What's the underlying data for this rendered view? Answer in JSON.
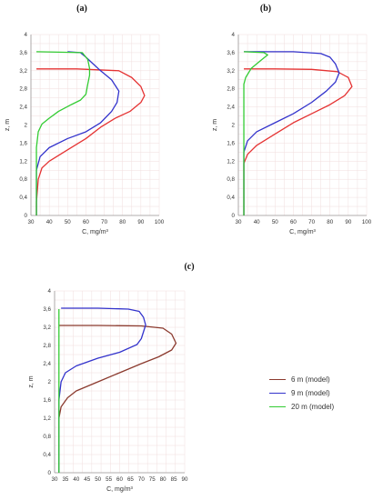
{
  "panels": [
    {
      "label": "(a)"
    },
    {
      "label": "(b)"
    },
    {
      "label": "(c)"
    }
  ],
  "legend": {
    "items": [
      {
        "label": "6 m (model)",
        "color": "#8B3A2E"
      },
      {
        "label": "9 m (model)",
        "color": "#3333CC"
      },
      {
        "label": "20 m (model)",
        "color": "#33CC33"
      }
    ]
  },
  "chart_data": [
    {
      "type": "line",
      "panel": "(a)",
      "xlabel": "C, mg/m³",
      "ylabel": "z, m",
      "xlim": [
        30,
        100
      ],
      "ylim": [
        0,
        4
      ],
      "xticks": [
        30,
        40,
        50,
        60,
        70,
        80,
        90,
        100
      ],
      "yticks": [
        0,
        0.4,
        0.8,
        1.2,
        1.6,
        2,
        2.4,
        2.8,
        3.2,
        3.6,
        4
      ],
      "ytick_labels": [
        "0",
        "0,4",
        "0,8",
        "1,2",
        "1,6",
        "2",
        "2,4",
        "2,8",
        "3,2",
        "3,6",
        "4"
      ],
      "grid": true,
      "series": [
        {
          "color": "#E53333",
          "points": [
            [
              33,
              0
            ],
            [
              33,
              0.3
            ],
            [
              34,
              0.8
            ],
            [
              36,
              1.05
            ],
            [
              40,
              1.2
            ],
            [
              50,
              1.45
            ],
            [
              60,
              1.7
            ],
            [
              68,
              1.95
            ],
            [
              76,
              2.15
            ],
            [
              84,
              2.3
            ],
            [
              90,
              2.5
            ],
            [
              92,
              2.65
            ],
            [
              90,
              2.85
            ],
            [
              85,
              3.05
            ],
            [
              78,
              3.2
            ],
            [
              55,
              3.24
            ],
            [
              33,
              3.24
            ]
          ]
        },
        {
          "color": "#3333CC",
          "points": [
            [
              33,
              0
            ],
            [
              33,
              0.5
            ],
            [
              33,
              1.0
            ],
            [
              35,
              1.3
            ],
            [
              40,
              1.5
            ],
            [
              50,
              1.7
            ],
            [
              60,
              1.85
            ],
            [
              68,
              2.05
            ],
            [
              74,
              2.3
            ],
            [
              77,
              2.5
            ],
            [
              78,
              2.75
            ],
            [
              74,
              3.0
            ],
            [
              68,
              3.2
            ],
            [
              64,
              3.35
            ],
            [
              60,
              3.5
            ],
            [
              57,
              3.6
            ],
            [
              50,
              3.62
            ]
          ]
        },
        {
          "color": "#33CC33",
          "points": [
            [
              33,
              0
            ],
            [
              33,
              0.5
            ],
            [
              33,
              1.0
            ],
            [
              33,
              1.5
            ],
            [
              34,
              1.85
            ],
            [
              36,
              2.02
            ],
            [
              40,
              2.15
            ],
            [
              45,
              2.3
            ],
            [
              52,
              2.45
            ],
            [
              57,
              2.55
            ],
            [
              60,
              2.68
            ],
            [
              61,
              2.9
            ],
            [
              62,
              3.1
            ],
            [
              62,
              3.25
            ],
            [
              61,
              3.45
            ],
            [
              58,
              3.6
            ],
            [
              33,
              3.62
            ]
          ]
        }
      ]
    },
    {
      "type": "line",
      "panel": "(b)",
      "xlabel": "C, mg/m³",
      "ylabel": "z, m",
      "xlim": [
        30,
        100
      ],
      "ylim": [
        0,
        4
      ],
      "xticks": [
        30,
        40,
        50,
        60,
        70,
        80,
        90,
        100
      ],
      "yticks": [
        0,
        0.4,
        0.8,
        1.2,
        1.6,
        2,
        2.4,
        2.8,
        3.2,
        3.6,
        4
      ],
      "ytick_labels": [
        "0",
        "0,4",
        "0,8",
        "1,2",
        "1,6",
        "2",
        "2,4",
        "2,8",
        "3,2",
        "3,6",
        "4"
      ],
      "grid": true,
      "series": [
        {
          "color": "#E53333",
          "points": [
            [
              33,
              0
            ],
            [
              33,
              0.6
            ],
            [
              33,
              1.15
            ],
            [
              35,
              1.35
            ],
            [
              40,
              1.55
            ],
            [
              50,
              1.8
            ],
            [
              60,
              2.05
            ],
            [
              70,
              2.25
            ],
            [
              80,
              2.45
            ],
            [
              88,
              2.65
            ],
            [
              92,
              2.85
            ],
            [
              90,
              3.05
            ],
            [
              84,
              3.18
            ],
            [
              70,
              3.23
            ],
            [
              50,
              3.24
            ],
            [
              33,
              3.24
            ]
          ]
        },
        {
          "color": "#3333CC",
          "points": [
            [
              33,
              0
            ],
            [
              33,
              0.8
            ],
            [
              33,
              1.4
            ],
            [
              35,
              1.65
            ],
            [
              40,
              1.85
            ],
            [
              50,
              2.05
            ],
            [
              60,
              2.25
            ],
            [
              70,
              2.5
            ],
            [
              78,
              2.75
            ],
            [
              83,
              2.95
            ],
            [
              85,
              3.15
            ],
            [
              83,
              3.35
            ],
            [
              80,
              3.5
            ],
            [
              75,
              3.58
            ],
            [
              60,
              3.62
            ],
            [
              33,
              3.62
            ]
          ]
        },
        {
          "color": "#33CC33",
          "points": [
            [
              33,
              0
            ],
            [
              33,
              1.0
            ],
            [
              33,
              2.0
            ],
            [
              33,
              2.6
            ],
            [
              33,
              2.9
            ],
            [
              34,
              3.05
            ],
            [
              37,
              3.25
            ],
            [
              42,
              3.42
            ],
            [
              46,
              3.55
            ],
            [
              44,
              3.6
            ],
            [
              33,
              3.62
            ]
          ]
        }
      ]
    },
    {
      "type": "line",
      "panel": "(c)",
      "xlabel": "C, mg/m³",
      "ylabel": "z, m",
      "xlim": [
        30,
        100
      ],
      "ylim": [
        0,
        4
      ],
      "xticks": [
        30,
        35,
        40,
        45,
        50,
        55,
        60,
        65,
        70,
        75,
        80,
        85,
        90
      ],
      "xlim_c": [
        30,
        90
      ],
      "yticks": [
        0,
        0.4,
        0.8,
        1.2,
        1.6,
        2,
        2.4,
        2.8,
        3.2,
        3.6,
        4
      ],
      "ytick_labels": [
        "0",
        "0,4",
        "0,8",
        "1,2",
        "1,6",
        "2",
        "2,4",
        "2,8",
        "3,2",
        "3,6",
        "4"
      ],
      "grid": true,
      "series": [
        {
          "name": "6 m (model)",
          "color": "#8B3A2E",
          "points": [
            [
              32,
              0
            ],
            [
              32,
              0.6
            ],
            [
              32,
              1.2
            ],
            [
              33,
              1.45
            ],
            [
              36,
              1.65
            ],
            [
              40,
              1.8
            ],
            [
              50,
              2.0
            ],
            [
              60,
              2.2
            ],
            [
              70,
              2.4
            ],
            [
              78,
              2.55
            ],
            [
              84,
              2.7
            ],
            [
              86,
              2.85
            ],
            [
              84,
              3.05
            ],
            [
              80,
              3.18
            ],
            [
              70,
              3.23
            ],
            [
              50,
              3.24
            ],
            [
              32,
              3.24
            ]
          ]
        },
        {
          "name": "9 m (model)",
          "color": "#3333CC",
          "points": [
            [
              32,
              0
            ],
            [
              32,
              0.8
            ],
            [
              32,
              1.6
            ],
            [
              33,
              2.0
            ],
            [
              35,
              2.2
            ],
            [
              40,
              2.35
            ],
            [
              50,
              2.52
            ],
            [
              60,
              2.65
            ],
            [
              68,
              2.82
            ],
            [
              70,
              2.95
            ],
            [
              71,
              3.1
            ],
            [
              72,
              3.25
            ],
            [
              71,
              3.42
            ],
            [
              69,
              3.55
            ],
            [
              64,
              3.6
            ],
            [
              50,
              3.62
            ],
            [
              33,
              3.62
            ]
          ]
        },
        {
          "name": "20 m (model)",
          "color": "#33CC33",
          "points": [
            [
              32,
              0
            ],
            [
              32,
              1.0
            ],
            [
              32,
              2.0
            ],
            [
              32,
              3.0
            ],
            [
              32,
              3.6
            ]
          ]
        }
      ]
    }
  ]
}
